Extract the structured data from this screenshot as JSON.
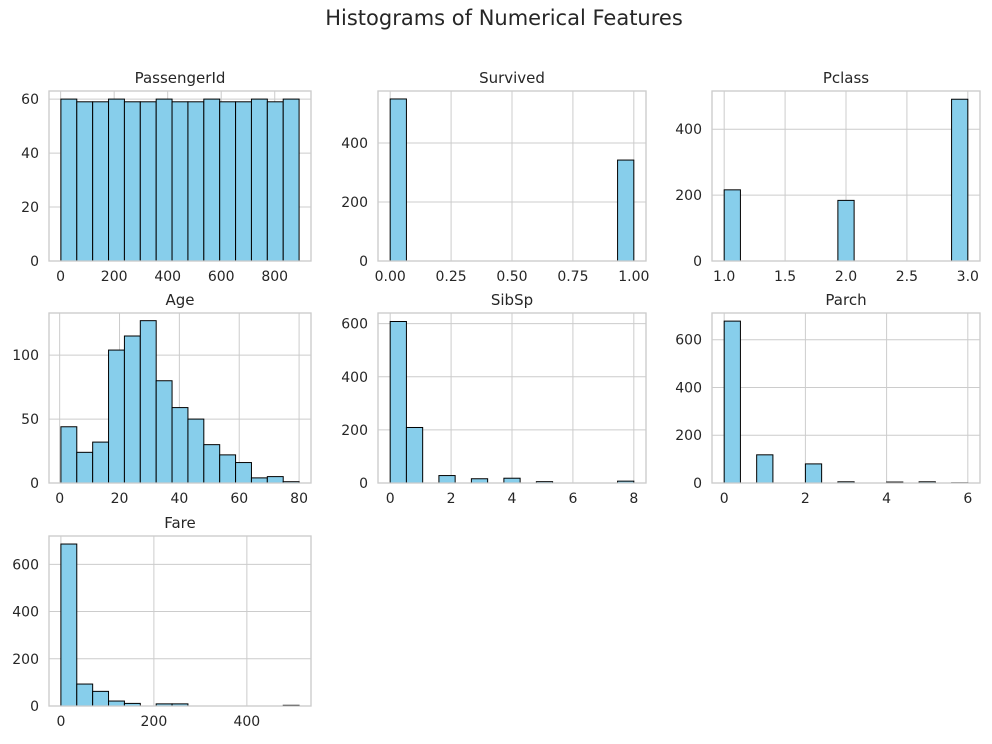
{
  "title": "Histograms of Numerical Features",
  "colors": {
    "bar_fill": "#87ceeb",
    "bar_edge": "#000000",
    "grid": "#cccccc"
  },
  "chart_data": [
    {
      "type": "bar",
      "subtype": "histogram",
      "title": "PassengerId",
      "bin_range": [
        1,
        891
      ],
      "bins": 15,
      "values": [
        60,
        59,
        59,
        60,
        59,
        59,
        60,
        59,
        59,
        60,
        59,
        59,
        60,
        59,
        60
      ],
      "xlim": [
        -43.5,
        935.5
      ],
      "ylim": [
        0,
        63
      ],
      "xticks": [
        0,
        200,
        400,
        600,
        800
      ],
      "xtick_labels": [
        "0",
        "200",
        "400",
        "600",
        "800"
      ],
      "yticks": [
        0,
        20,
        40,
        60
      ],
      "ytick_labels": [
        "0",
        "20",
        "40",
        "60"
      ],
      "grid": true
    },
    {
      "type": "bar",
      "subtype": "histogram",
      "title": "Survived",
      "bin_range": [
        0,
        1
      ],
      "bins": 15,
      "values": [
        549,
        0,
        0,
        0,
        0,
        0,
        0,
        0,
        0,
        0,
        0,
        0,
        0,
        0,
        342
      ],
      "xlim": [
        -0.05,
        1.05
      ],
      "ylim": [
        0,
        576
      ],
      "xticks": [
        0,
        0.25,
        0.5,
        0.75,
        1
      ],
      "xtick_labels": [
        "0.00",
        "0.25",
        "0.50",
        "0.75",
        "1.00"
      ],
      "yticks": [
        0,
        200,
        400
      ],
      "ytick_labels": [
        "0",
        "200",
        "400"
      ],
      "grid": true
    },
    {
      "type": "bar",
      "subtype": "histogram",
      "title": "Pclass",
      "bin_range": [
        1,
        3
      ],
      "bins": 15,
      "values": [
        216,
        0,
        0,
        0,
        0,
        0,
        0,
        184,
        0,
        0,
        0,
        0,
        0,
        0,
        491
      ],
      "xlim": [
        0.9,
        3.1
      ],
      "ylim": [
        0,
        516
      ],
      "xticks": [
        1,
        1.5,
        2,
        2.5,
        3
      ],
      "xtick_labels": [
        "1.0",
        "1.5",
        "2.0",
        "2.5",
        "3.0"
      ],
      "yticks": [
        0,
        200,
        400
      ],
      "ytick_labels": [
        "0",
        "200",
        "400"
      ],
      "grid": true
    },
    {
      "type": "bar",
      "subtype": "histogram",
      "title": "Age",
      "bin_range": [
        0.42,
        80
      ],
      "bins": 15,
      "values": [
        44,
        24,
        32,
        104,
        115,
        127,
        80,
        59,
        50,
        30,
        22,
        16,
        4,
        5,
        1
      ],
      "xlim": [
        -3.56,
        83.98
      ],
      "ylim": [
        0,
        133
      ],
      "xticks": [
        0,
        20,
        40,
        60,
        80
      ],
      "xtick_labels": [
        "0",
        "20",
        "40",
        "60",
        "80"
      ],
      "yticks": [
        0,
        50,
        100
      ],
      "ytick_labels": [
        "0",
        "50",
        "100"
      ],
      "grid": true
    },
    {
      "type": "bar",
      "subtype": "histogram",
      "title": "SibSp",
      "bin_range": [
        0,
        8
      ],
      "bins": 15,
      "values": [
        608,
        209,
        0,
        28,
        0,
        16,
        0,
        18,
        0,
        5,
        0,
        0,
        0,
        0,
        7
      ],
      "xlim": [
        -0.4,
        8.4
      ],
      "ylim": [
        0,
        640
      ],
      "xticks": [
        0,
        2,
        4,
        6,
        8
      ],
      "xtick_labels": [
        "0",
        "2",
        "4",
        "6",
        "8"
      ],
      "yticks": [
        0,
        200,
        400,
        600
      ],
      "ytick_labels": [
        "0",
        "200",
        "400",
        "600"
      ],
      "grid": true
    },
    {
      "type": "bar",
      "subtype": "histogram",
      "title": "Parch",
      "bin_range": [
        0,
        6
      ],
      "bins": 15,
      "values": [
        678,
        0,
        118,
        0,
        0,
        80,
        0,
        5,
        0,
        0,
        4,
        0,
        5,
        0,
        1
      ],
      "xlim": [
        -0.3,
        6.3
      ],
      "ylim": [
        0,
        712
      ],
      "xticks": [
        0,
        2,
        4,
        6
      ],
      "xtick_labels": [
        "0",
        "2",
        "4",
        "6"
      ],
      "yticks": [
        0,
        200,
        400,
        600
      ],
      "ytick_labels": [
        "0",
        "200",
        "400",
        "600"
      ],
      "grid": true
    },
    {
      "type": "bar",
      "subtype": "histogram",
      "title": "Fare",
      "bin_range": [
        0,
        512.33
      ],
      "bins": 15,
      "values": [
        686,
        93,
        62,
        21,
        11,
        0,
        9,
        9,
        0,
        0,
        0,
        0,
        0,
        0,
        3
      ],
      "xlim": [
        -25.6,
        537.95
      ],
      "ylim": [
        0,
        720
      ],
      "xticks": [
        0,
        200,
        400
      ],
      "xtick_labels": [
        "0",
        "200",
        "400"
      ],
      "yticks": [
        0,
        200,
        400,
        600
      ],
      "ytick_labels": [
        "0",
        "200",
        "400",
        "600"
      ],
      "grid": true
    }
  ]
}
